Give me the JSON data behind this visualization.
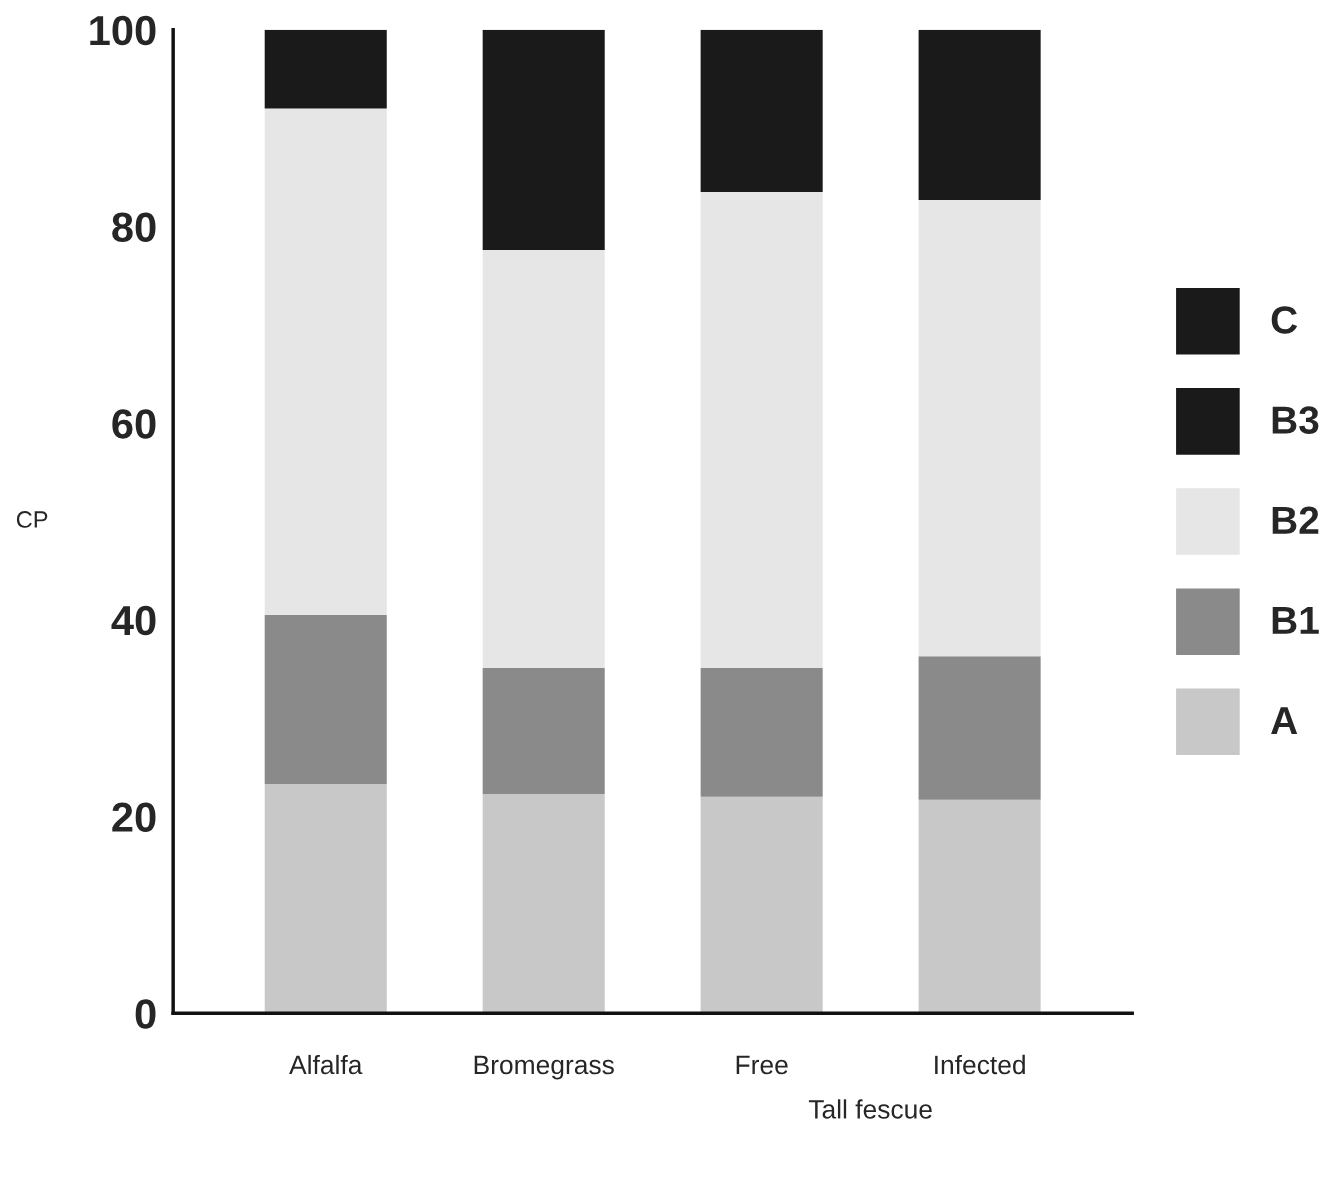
{
  "chart_data": {
    "type": "bar",
    "stacked": true,
    "categories": [
      "Alfalfa",
      "Bromegrass",
      "Free",
      "Infected"
    ],
    "ylabel": "CP",
    "series": [
      {
        "name": "A",
        "color": "#c8c8c8",
        "values": [
          23.3,
          22.3,
          22.0,
          21.7
        ]
      },
      {
        "name": "B1",
        "color": "#8a8a8a",
        "values": [
          17.2,
          12.8,
          13.1,
          14.6
        ]
      },
      {
        "name": "B2",
        "color": "#e6e6e6",
        "values": [
          51.5,
          42.5,
          48.4,
          46.4
        ]
      },
      {
        "name": "B3",
        "color": "#1a1a1a",
        "values": [
          8.0,
          22.4,
          16.5,
          17.3
        ]
      },
      {
        "name": "C",
        "color": "#1a1a1a",
        "values": [
          null,
          null,
          null,
          null
        ]
      }
    ],
    "ylim": [
      0,
      100
    ],
    "yticks": [
      0,
      20,
      40,
      60,
      80,
      100
    ],
    "annotations": [
      "Tall fescue"
    ],
    "grid": false,
    "legend": "right"
  }
}
